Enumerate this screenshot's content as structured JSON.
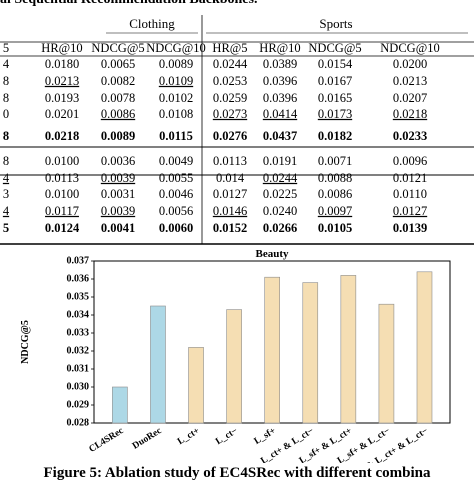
{
  "table": {
    "caption_fragment": "al Sequential Recommendation Backbones.",
    "groups": [
      "Clothing",
      "Sports"
    ],
    "columns": [
      "5",
      "HR@10",
      "NDCG@5",
      "NDCG@10",
      "HR@5",
      "HR@10",
      "NDCG@5",
      "NDCG@10"
    ],
    "blocks": [
      {
        "rows": [
          {
            "cells": [
              "4",
              "0.0180",
              "0.0065",
              "0.0089",
              "0.0244",
              "0.0389",
              "0.0154",
              "0.0200"
            ],
            "underline": []
          },
          {
            "cells": [
              "8",
              "0.0213",
              "0.0082",
              "0.0109",
              "0.0253",
              "0.0396",
              "0.0167",
              "0.0213"
            ],
            "underline": [
              1,
              3
            ]
          },
          {
            "cells": [
              "8",
              "0.0193",
              "0.0078",
              "0.0102",
              "0.0259",
              "0.0396",
              "0.0165",
              "0.0207"
            ],
            "underline": []
          },
          {
            "cells": [
              "0",
              "0.0201",
              "0.0086",
              "0.0108",
              "0.0273",
              "0.0414",
              "0.0173",
              "0.0218"
            ],
            "underline": [
              2,
              4,
              5,
              6,
              7
            ]
          }
        ],
        "bold_row": {
          "cells": [
            "8",
            "0.0218",
            "0.0089",
            "0.0115",
            "0.0276",
            "0.0437",
            "0.0182",
            "0.0233"
          ],
          "underline": []
        }
      },
      {
        "rows": [
          {
            "cells": [
              "8",
              "0.0100",
              "0.0036",
              "0.0049",
              "0.0113",
              "0.0191",
              "0.0071",
              "0.0096"
            ],
            "underline": []
          },
          {
            "cells": [
              "4",
              "0.0113",
              "0.0039",
              "0.0055",
              "0.014",
              "0.0244",
              "0.0088",
              "0.0121"
            ],
            "underline": [
              0,
              2,
              5
            ]
          },
          {
            "cells": [
              "3",
              "0.0100",
              "0.0031",
              "0.0046",
              "0.0127",
              "0.0225",
              "0.0086",
              "0.0110"
            ],
            "underline": []
          },
          {
            "cells": [
              "4",
              "0.0117",
              "0.0039",
              "0.0056",
              "0.0146",
              "0.0240",
              "0.0097",
              "0.0127"
            ],
            "underline": [
              0,
              1,
              2,
              4,
              6,
              7
            ]
          }
        ],
        "bold_row": {
          "cells": [
            "5",
            "0.0124",
            "0.0041",
            "0.0060",
            "0.0152",
            "0.0266",
            "0.0105",
            "0.0139"
          ],
          "underline": []
        }
      }
    ]
  },
  "chart_data": {
    "type": "bar",
    "title": "Beauty",
    "ylabel": "NDCG@5",
    "xlabel": "",
    "ylim": [
      0.028,
      0.037
    ],
    "yticks": [
      "0.028",
      "0.029",
      "0.030",
      "0.031",
      "0.032",
      "0.033",
      "0.034",
      "0.035",
      "0.036",
      "0.037"
    ],
    "categories": [
      {
        "label": "CL4SRec",
        "value": 0.03,
        "color": "#add8e6"
      },
      {
        "label": "DuoRec",
        "value": 0.0345,
        "color": "#add8e6"
      },
      {
        "label": "L_ct+",
        "value": 0.0322,
        "color": "#f5deb3"
      },
      {
        "label": "L_ct−",
        "value": 0.0343,
        "color": "#f5deb3"
      },
      {
        "label": "L_sf+",
        "value": 0.0361,
        "color": "#f5deb3"
      },
      {
        "label": "L_ct+ & L_ct−",
        "value": 0.0358,
        "color": "#f5deb3"
      },
      {
        "label": "L_sf+ & L_ct+",
        "value": 0.0362,
        "color": "#f5deb3"
      },
      {
        "label": "L_sf+ & L_ct−",
        "value": 0.0346,
        "color": "#f5deb3"
      },
      {
        "label": "L_sf+ & L_ct+ & L_ct−",
        "value": 0.0364,
        "color": "#f5deb3"
      }
    ]
  },
  "figure_caption": "Figure 5: Ablation study of EC4SRec with different combina"
}
